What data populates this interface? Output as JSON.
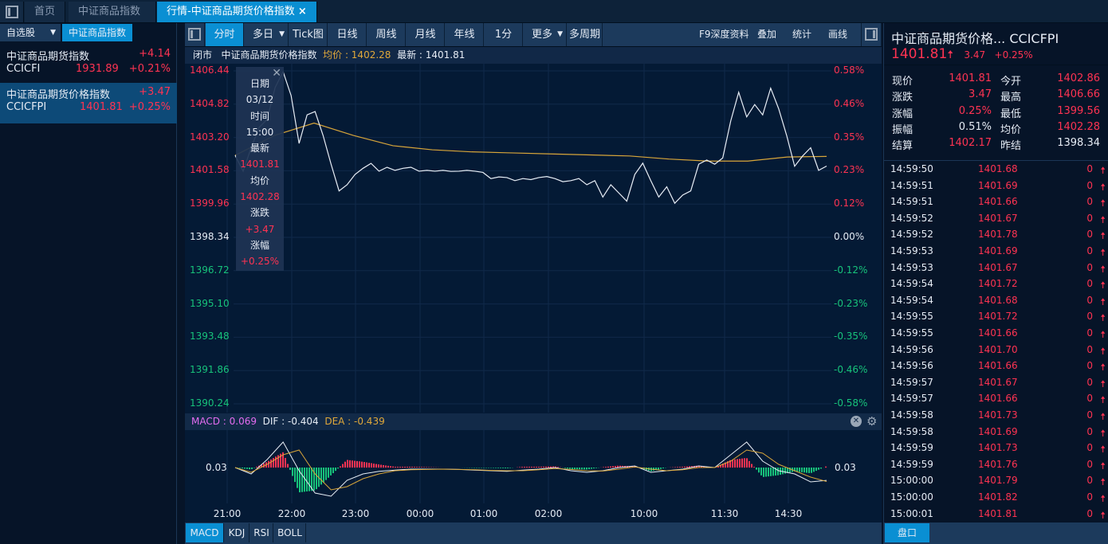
{
  "tabs": [
    {
      "label": "首页"
    },
    {
      "label": "中证商品指数"
    },
    {
      "label": "行情-中证商品期货价格指数",
      "close": "×"
    }
  ],
  "left": {
    "btn_watchlist": "自选股",
    "btn_index": "中证商品指数",
    "items": [
      {
        "name": "中证商品期货指数",
        "code": "CCICFI",
        "price": "1931.89",
        "change": "+4.14",
        "pct": "+0.21%"
      },
      {
        "name": "中证商品期货价格指数",
        "code": "CCICFPI",
        "price": "1401.81",
        "change": "+3.47",
        "pct": "+0.25%"
      }
    ]
  },
  "toolbar": {
    "items": [
      "分时",
      "多日",
      "Tick图",
      "日线",
      "周线",
      "月线",
      "年线",
      "1分",
      "更多",
      "多周期"
    ],
    "right": [
      "F9深度资料",
      "叠加",
      "统计",
      "画线"
    ]
  },
  "info": {
    "status": "闭市",
    "name": "中证商品期货价格指数",
    "avg_label": "均价 : 1402.28",
    "last_label": "最新 : 1401.81"
  },
  "tooltip": {
    "date_label": "日期",
    "date": "03/12",
    "time_label": "时间",
    "time": "15:00",
    "last_label": "最新",
    "last": "1401.81",
    "avg_label": "均价",
    "avg": "1402.28",
    "chg_label": "涨跌",
    "chg": "+3.47",
    "pct_label": "涨幅",
    "pct": "+0.25%"
  },
  "price_axis": [
    "1406.44",
    "1404.82",
    "1403.20",
    "1401.58",
    "1399.96",
    "1398.34",
    "1396.72",
    "1395.10",
    "1393.48",
    "1391.86",
    "1390.24"
  ],
  "pct_axis": [
    "0.58%",
    "0.46%",
    "0.35%",
    "0.23%",
    "0.12%",
    "0.00%",
    "-0.12%",
    "-0.23%",
    "-0.35%",
    "-0.46%",
    "-0.58%"
  ],
  "time_axis": [
    "21:00",
    "22:00",
    "23:00",
    "00:00",
    "01:00",
    "02:00",
    "10:00",
    "11:30",
    "14:30"
  ],
  "chart_data": {
    "type": "line",
    "prev_close": 1398.34,
    "ylim": [
      1390.24,
      1406.44
    ],
    "price": [
      1402.33,
      1401.56,
      1402.7,
      1403.69,
      1404.08,
      1405.63,
      1406.4,
      1405.24,
      1402.91,
      1404.3,
      1404.46,
      1403.3,
      1401.9,
      1400.6,
      1400.9,
      1401.4,
      1401.7,
      1401.94,
      1401.56,
      1401.75,
      1401.6,
      1401.7,
      1401.75,
      1401.56,
      1401.6,
      1401.56,
      1401.6,
      1401.55,
      1401.56,
      1401.6,
      1401.56,
      1401.5,
      1401.2,
      1401.28,
      1401.25,
      1401.1,
      1401.2,
      1401.15,
      1401.25,
      1401.3,
      1401.2,
      1401.05,
      1401.1,
      1401.2,
      1400.9,
      1401.1,
      1400.3,
      1400.9,
      1400.5,
      1400.1,
      1401.4,
      1401.95,
      1401.1,
      1400.3,
      1400.8,
      1400.0,
      1400.4,
      1400.6,
      1401.9,
      1402.1,
      1401.9,
      1402.2,
      1404.0,
      1405.4,
      1404.2,
      1404.8,
      1404.3,
      1405.6,
      1404.6,
      1403.3,
      1401.8,
      1402.3,
      1402.7,
      1401.6,
      1401.81
    ],
    "avg": [
      1402.33,
      1403.3,
      1403.9,
      1403.3,
      1402.8,
      1402.6,
      1402.5,
      1402.45,
      1402.4,
      1402.35,
      1402.3,
      1402.15,
      1402.05,
      1402.05,
      1402.25,
      1402.28
    ]
  },
  "macd": {
    "macd_label": "MACD : 0.069",
    "dif_label": "DIF : -0.404",
    "dea_label": "DEA : -0.439",
    "zero_label": "0.03",
    "dif": [
      0,
      -0.2,
      0.25,
      0.8,
      -0.1,
      -0.8,
      -0.9,
      -0.4,
      -0.2,
      -0.12,
      -0.08,
      -0.05,
      -0.05,
      -0.05,
      -0.06,
      -0.08,
      -0.1,
      -0.12,
      -0.08,
      -0.05,
      0,
      -0.1,
      -0.15,
      -0.1,
      0,
      0.05,
      -0.15,
      -0.1,
      -0.05,
      0.05,
      0,
      0.4,
      0.8,
      0.2,
      -0.1,
      -0.2,
      -0.45,
      -0.404
    ],
    "dea": [
      0,
      -0.15,
      0.1,
      0.4,
      0.55,
      -0.2,
      -0.7,
      -0.6,
      -0.35,
      -0.2,
      -0.1,
      -0.07,
      -0.06,
      -0.05,
      -0.06,
      -0.07,
      -0.09,
      -0.1,
      -0.1,
      -0.07,
      -0.03,
      -0.06,
      -0.1,
      -0.11,
      -0.05,
      0.02,
      -0.05,
      -0.1,
      -0.07,
      0,
      0,
      0.2,
      0.55,
      0.45,
      0.1,
      -0.1,
      -0.3,
      -0.439
    ]
  },
  "indicator_tabs": [
    "MACD",
    "KDJ",
    "RSI",
    "BOLL"
  ],
  "right": {
    "title": "中证商品期货价格...",
    "code": "CCICFPI",
    "price": "1401.81",
    "change": "3.47",
    "pct": "+0.25%",
    "stats": [
      {
        "l": "现价",
        "v": "1401.81",
        "c": "red"
      },
      {
        "l": "今开",
        "v": "1402.86",
        "c": "red"
      },
      {
        "l": "涨跌",
        "v": "3.47",
        "c": "red"
      },
      {
        "l": "最高",
        "v": "1406.66",
        "c": "red"
      },
      {
        "l": "涨幅",
        "v": "0.25%",
        "c": "red"
      },
      {
        "l": "最低",
        "v": "1399.56",
        "c": "red"
      },
      {
        "l": "振幅",
        "v": "0.51%",
        "c": "white"
      },
      {
        "l": "均价",
        "v": "1402.28",
        "c": "red"
      },
      {
        "l": "结算",
        "v": "1402.17",
        "c": "red"
      },
      {
        "l": "昨结",
        "v": "1398.34",
        "c": "white"
      }
    ],
    "ticks": [
      [
        "14:59:50",
        "1401.68",
        "0"
      ],
      [
        "14:59:51",
        "1401.69",
        "0"
      ],
      [
        "14:59:51",
        "1401.66",
        "0"
      ],
      [
        "14:59:52",
        "1401.67",
        "0"
      ],
      [
        "14:59:52",
        "1401.78",
        "0"
      ],
      [
        "14:59:53",
        "1401.69",
        "0"
      ],
      [
        "14:59:53",
        "1401.67",
        "0"
      ],
      [
        "14:59:54",
        "1401.72",
        "0"
      ],
      [
        "14:59:54",
        "1401.68",
        "0"
      ],
      [
        "14:59:55",
        "1401.72",
        "0"
      ],
      [
        "14:59:55",
        "1401.66",
        "0"
      ],
      [
        "14:59:56",
        "1401.70",
        "0"
      ],
      [
        "14:59:56",
        "1401.66",
        "0"
      ],
      [
        "14:59:57",
        "1401.67",
        "0"
      ],
      [
        "14:59:57",
        "1401.66",
        "0"
      ],
      [
        "14:59:58",
        "1401.73",
        "0"
      ],
      [
        "14:59:58",
        "1401.69",
        "0"
      ],
      [
        "14:59:59",
        "1401.73",
        "0"
      ],
      [
        "14:59:59",
        "1401.76",
        "0"
      ],
      [
        "15:00:00",
        "1401.79",
        "0"
      ],
      [
        "15:00:00",
        "1401.82",
        "0"
      ],
      [
        "15:00:01",
        "1401.81",
        "0"
      ]
    ],
    "panel_btn": "盘口"
  },
  "colors": {
    "up": "#ff3352",
    "down": "#17c37b",
    "accent": "#0a8fd3",
    "avg_line": "#d9a63a"
  }
}
